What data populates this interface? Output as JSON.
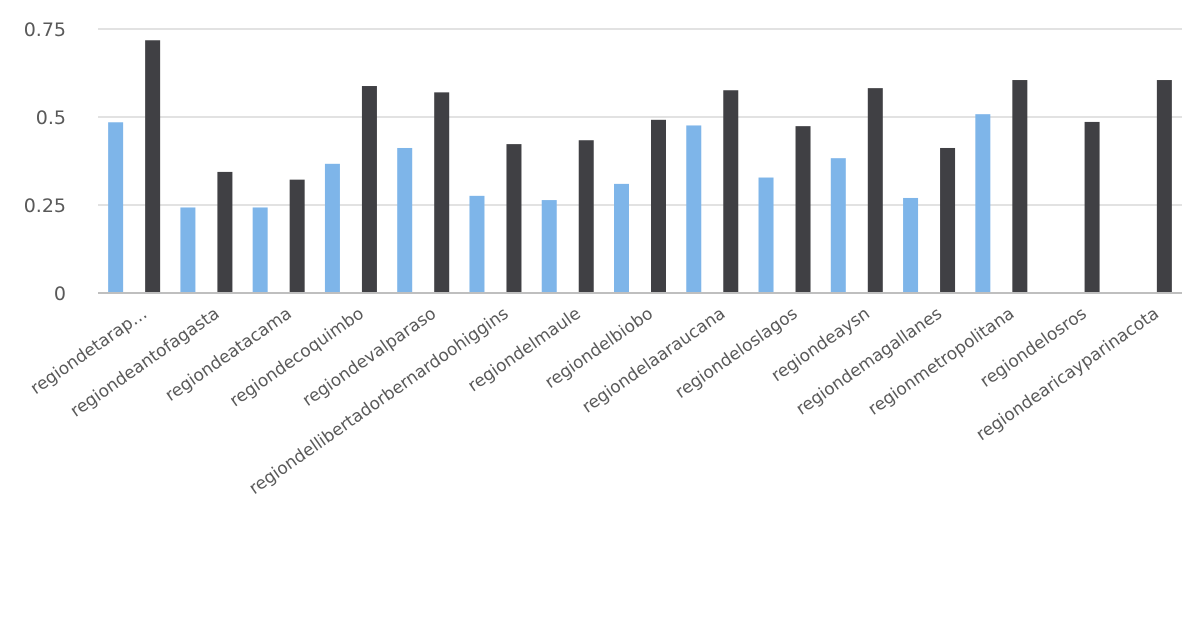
{
  "chart_data": {
    "type": "bar",
    "title": "",
    "xlabel": "",
    "ylabel": "",
    "ylim": [
      0,
      0.75
    ],
    "yticks": [
      0,
      0.25,
      0.5,
      0.75
    ],
    "ytick_labels": [
      "0",
      "0.25",
      "0.5",
      "0.75"
    ],
    "grid": true,
    "legend": "none",
    "categories": [
      "regiondetarap…",
      "regiondeantofagasta",
      "regiondeatacama",
      "regiondecoquimbo",
      "regiondevalparaso",
      "regiondellibertadorbernardoohiggins",
      "regiondelmaule",
      "regiondelbiobo",
      "regiondelaaraucana",
      "regiondeloslagos",
      "regiondeaysn",
      "regiondemagallanes",
      "regionmetropolitana",
      "regiondelosros",
      "regiondearicayparinacota"
    ],
    "series": [
      {
        "color": "#7eb5e9",
        "values": [
          0.485,
          0.243,
          0.243,
          0.367,
          0.412,
          0.276,
          0.264,
          0.31,
          0.476,
          0.328,
          0.383,
          0.27,
          0.508,
          null,
          null
        ]
      },
      {
        "color": "#404044",
        "values": [
          0.718,
          0.344,
          0.322,
          0.588,
          0.57,
          0.423,
          0.434,
          0.492,
          0.576,
          0.474,
          0.582,
          0.412,
          0.605,
          0.486,
          0.605
        ]
      }
    ]
  }
}
